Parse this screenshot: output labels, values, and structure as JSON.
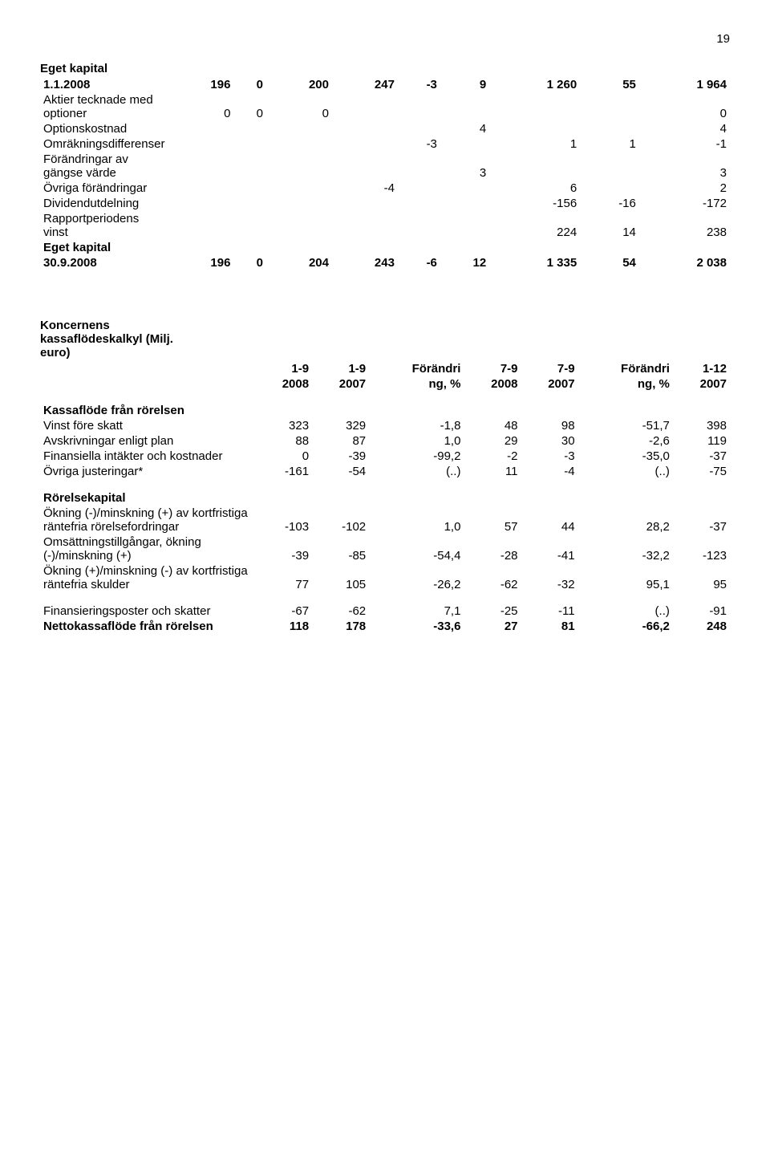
{
  "page_number": "19",
  "equity_table": {
    "title1": "Eget kapital",
    "rows": [
      {
        "label": "1.1.2008",
        "c": [
          "196",
          "0",
          "200",
          "247",
          "-3",
          "9",
          "1 260",
          "55",
          "1 964"
        ],
        "bold": true
      },
      {
        "label": "Aktier tecknade med optioner",
        "c": [
          "0",
          "0",
          "0",
          "",
          "",
          "",
          "",
          "",
          "0"
        ]
      },
      {
        "label": "Optionskostnad",
        "c": [
          "",
          "",
          "",
          "",
          "",
          "4",
          "",
          "",
          "4"
        ]
      },
      {
        "label": "Omräkningsdifferenser",
        "c": [
          "",
          "",
          "",
          "",
          "-3",
          "",
          "1",
          "1",
          "-1"
        ]
      },
      {
        "label": "Förändringar av gängse värde",
        "c": [
          "",
          "",
          "",
          "",
          "",
          "3",
          "",
          "",
          "3"
        ]
      },
      {
        "label": "Övriga förändringar",
        "c": [
          "",
          "",
          "",
          "-4",
          "",
          "",
          "6",
          "",
          "2"
        ]
      },
      {
        "label": "Dividendutdelning",
        "c": [
          "",
          "",
          "",
          "",
          "",
          "",
          "-156",
          "-16",
          "-172"
        ]
      },
      {
        "label": "Rapportperiodens vinst",
        "c": [
          "",
          "",
          "",
          "",
          "",
          "",
          "224",
          "14",
          "238"
        ]
      }
    ],
    "title2": "Eget kapital",
    "end_row": {
      "label": "30.9.2008",
      "c": [
        "196",
        "0",
        "204",
        "243",
        "-6",
        "12",
        "1 335",
        "54",
        "2 038"
      ],
      "bold": true
    }
  },
  "cashflow_table": {
    "title": "Koncernens kassaflödeskalkyl (Milj. euro)",
    "headers": [
      {
        "top": "1-9",
        "bot": "2008"
      },
      {
        "top": "1-9",
        "bot": "2007"
      },
      {
        "top": "Förändri",
        "bot": "ng, %"
      },
      {
        "top": "7-9",
        "bot": "2008"
      },
      {
        "top": "7-9",
        "bot": "2007"
      },
      {
        "top": "Förändri",
        "bot": "ng, %"
      },
      {
        "top": "1-12",
        "bot": "2007"
      }
    ],
    "sections": [
      {
        "heading": "Kassaflöde från rörelsen",
        "rows": [
          {
            "label": "Vinst före skatt",
            "c": [
              "323",
              "329",
              "-1,8",
              "48",
              "98",
              "-51,7",
              "398"
            ]
          },
          {
            "label": "Avskrivningar enligt plan",
            "c": [
              "88",
              "87",
              "1,0",
              "29",
              "30",
              "-2,6",
              "119"
            ]
          },
          {
            "label": "Finansiella intäkter och kostnader",
            "c": [
              "0",
              "-39",
              "-99,2",
              "-2",
              "-3",
              "-35,0",
              "-37"
            ]
          },
          {
            "label": "Övriga justeringar*",
            "c": [
              "-161",
              "-54",
              "(..)",
              "11",
              "-4",
              "(..)",
              "-75"
            ]
          }
        ]
      },
      {
        "heading": "Rörelsekapital",
        "rows": [
          {
            "label": "Ökning (-)/minskning (+) av kortfristiga räntefria rörelsefordringar",
            "c": [
              "-103",
              "-102",
              "1,0",
              "57",
              "44",
              "28,2",
              "-37"
            ]
          },
          {
            "label": "Omsättningstillgångar, ökning (-)/minskning (+)",
            "c": [
              "-39",
              "-85",
              "-54,4",
              "-28",
              "-41",
              "-32,2",
              "-123"
            ]
          },
          {
            "label": "Ökning (+)/minskning (-) av kortfristiga räntefria skulder",
            "c": [
              "77",
              "105",
              "-26,2",
              "-62",
              "-32",
              "95,1",
              "95"
            ]
          }
        ]
      },
      {
        "heading": null,
        "rows": [
          {
            "label": "Finansieringsposter och skatter",
            "c": [
              "-67",
              "-62",
              "7,1",
              "-25",
              "-11",
              "(..)",
              "-91"
            ]
          },
          {
            "label": "Nettokassaflöde från rörelsen",
            "c": [
              "118",
              "178",
              "-33,6",
              "27",
              "81",
              "-66,2",
              "248"
            ],
            "bold": true
          }
        ]
      }
    ]
  }
}
